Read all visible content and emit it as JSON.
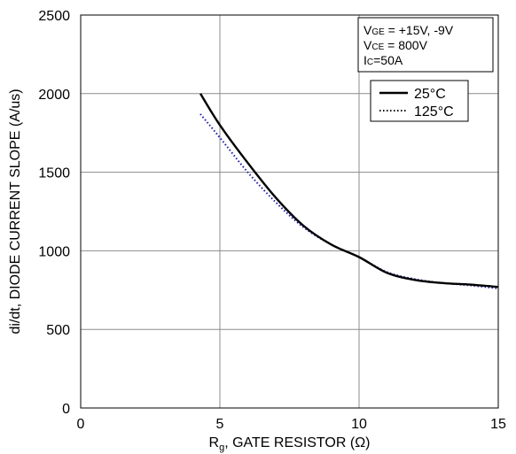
{
  "chart_data": {
    "type": "line",
    "title": "",
    "xlabel": {
      "main": "R",
      "sub": "g",
      "rest": ", GATE RESISTOR (Ω)"
    },
    "ylabel": "di/dt, DIODE CURRENT SLOPE (A/us)",
    "xlim": [
      0,
      15
    ],
    "ylim": [
      0,
      2500
    ],
    "xticks": [
      0,
      5,
      10,
      15
    ],
    "yticks": [
      0,
      500,
      1000,
      1500,
      2000,
      2500
    ],
    "grid": true,
    "legend_position": "top-right",
    "conditions": [
      {
        "main": "V",
        "sub": "GE",
        "rest": " = +15V, -9V"
      },
      {
        "main": "V",
        "sub": "CE",
        "rest": " = 800V"
      },
      {
        "main": "I",
        "sub": "C",
        "rest": "=50A"
      }
    ],
    "series": [
      {
        "name": "25°C",
        "style": "solid",
        "color": "#000000",
        "x": [
          4.3,
          5,
          6,
          7,
          8,
          9,
          10,
          11,
          12,
          13,
          14,
          15
        ],
        "y": [
          2000,
          1800,
          1560,
          1340,
          1160,
          1040,
          960,
          860,
          815,
          795,
          785,
          770
        ]
      },
      {
        "name": "125°C",
        "style": "dotted",
        "color": "#1a1aa8",
        "x": [
          4.3,
          5,
          6,
          7,
          8,
          9,
          10,
          11,
          12,
          13,
          14,
          15
        ],
        "y": [
          1870,
          1720,
          1500,
          1310,
          1150,
          1040,
          960,
          865,
          820,
          795,
          780,
          760
        ]
      }
    ]
  }
}
